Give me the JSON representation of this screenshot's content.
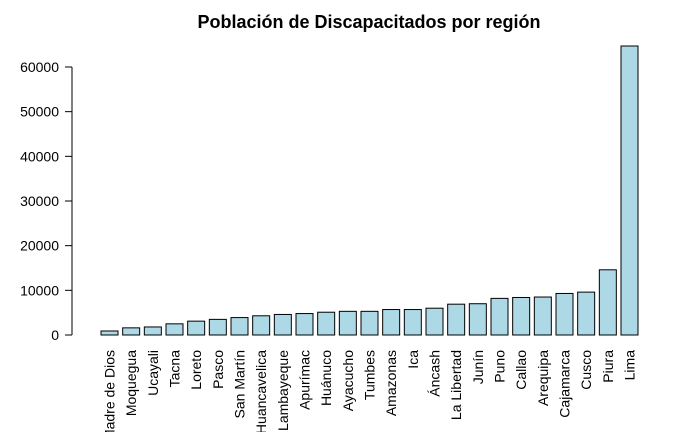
{
  "chart_data": {
    "type": "bar",
    "title": "Población de Discapacitados por región",
    "xlabel": "",
    "ylabel": "",
    "categories": [
      "Madre de Dios",
      "Moquegua",
      "Ucayali",
      "Tacna",
      "Loreto",
      "Pasco",
      "San Martín",
      "Huancavelica",
      "Lambayeque",
      "Apurímac",
      "Huánuco",
      "Ayacucho",
      "Tumbes",
      "Amazonas",
      "Ica",
      "Áncash",
      "La Libertad",
      "Junín",
      "Puno",
      "Callao",
      "Arequipa",
      "Cajamarca",
      "Cusco",
      "Piura",
      "Lima"
    ],
    "values": [
      900,
      1600,
      1800,
      2500,
      3100,
      3500,
      3900,
      4300,
      4600,
      4800,
      5100,
      5300,
      5300,
      5700,
      5700,
      6000,
      6900,
      7000,
      8200,
      8400,
      8500,
      9300,
      9600,
      14600,
      64700
    ],
    "yticks": [
      0,
      10000,
      20000,
      30000,
      40000,
      50000,
      60000
    ],
    "ylim": [
      0,
      64700
    ],
    "grid": false,
    "colors": {
      "bar_fill": "#add8e6",
      "bar_stroke": "#000000",
      "text": "#000000"
    }
  }
}
